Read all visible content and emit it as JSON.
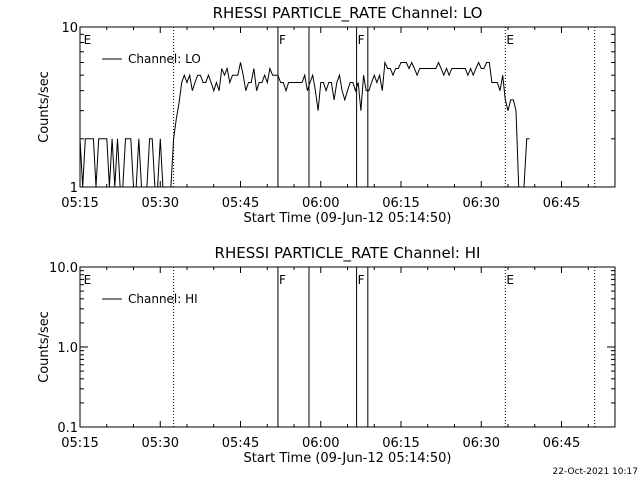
{
  "footer_stamp": "22-Oct-2021 10:17",
  "chart_data": [
    {
      "type": "line",
      "title": "RHESSI PARTICLE_RATE Channel: LO",
      "xlabel": "Start Time (09-Jun-12 05:14:50)",
      "ylabel": "Counts/sec",
      "yscale": "log",
      "ylim": [
        1,
        10
      ],
      "ytick_labels": [
        {
          "v": 10,
          "t": "10"
        },
        {
          "v": 1,
          "t": "1"
        }
      ],
      "xlim": [
        0,
        100
      ],
      "x_unit": "minutes after 05:14:50",
      "xtick_labels": [
        "05:15",
        "05:30",
        "05:45",
        "06:00",
        "06:15",
        "06:30",
        "06:45"
      ],
      "legend": {
        "label": "Channel: LO",
        "position": "top-left"
      },
      "markers": [
        {
          "t": 17.5,
          "label": "",
          "style": "dotted"
        },
        {
          "t": 0.5,
          "label": "E",
          "style": "none"
        },
        {
          "t": 37.0,
          "label": "F",
          "style": "solid"
        },
        {
          "t": 42.8,
          "label": "",
          "style": "solid"
        },
        {
          "t": 51.7,
          "label": "F",
          "style": "solid"
        },
        {
          "t": 53.8,
          "label": "",
          "style": "solid"
        },
        {
          "t": 79.5,
          "label": "E",
          "style": "dotted"
        },
        {
          "t": 96.2,
          "label": "",
          "style": "dotted"
        }
      ],
      "series": [
        {
          "name": "Channel: LO",
          "segments": [
            [
              0,
              17.5,
              "noise",
              1,
              2
            ],
            [
              17.5,
              19,
              "ramp",
              2,
              4
            ],
            [
              19,
              26,
              "noise",
              4,
              5
            ],
            [
              26,
              37,
              "noise",
              4,
              6
            ],
            [
              37,
              44,
              "noise",
              4,
              5
            ],
            [
              44,
              53,
              "noise",
              3,
              5
            ],
            [
              53,
              55,
              "noise",
              4,
              5
            ],
            [
              55,
              57,
              "noise",
              4,
              5
            ],
            [
              57,
              63,
              "noise",
              5,
              6
            ],
            [
              63,
              77,
              "noise",
              5,
              6
            ],
            [
              77,
              79.5,
              "noise",
              4,
              5
            ],
            [
              79.5,
              82,
              "noise",
              3,
              4
            ],
            [
              82,
              84.5,
              "noise",
              1,
              2
            ]
          ]
        }
      ]
    },
    {
      "type": "line",
      "title": "RHESSI PARTICLE_RATE Channel: HI",
      "xlabel": "Start Time (09-Jun-12 05:14:50)",
      "ylabel": "Counts/sec",
      "yscale": "log",
      "ylim": [
        0.1,
        10
      ],
      "ytick_labels": [
        {
          "v": 10,
          "t": "10.0"
        },
        {
          "v": 1,
          "t": "1.0"
        },
        {
          "v": 0.1,
          "t": "0.1"
        }
      ],
      "xlim": [
        0,
        100
      ],
      "x_unit": "minutes after 05:14:50",
      "xtick_labels": [
        "05:15",
        "05:30",
        "05:45",
        "06:00",
        "06:15",
        "06:30",
        "06:45"
      ],
      "legend": {
        "label": "Channel: HI",
        "position": "top-left"
      },
      "markers": [
        {
          "t": 17.5,
          "label": "",
          "style": "dotted"
        },
        {
          "t": 0.5,
          "label": "E",
          "style": "none"
        },
        {
          "t": 37.0,
          "label": "F",
          "style": "solid"
        },
        {
          "t": 42.8,
          "label": "",
          "style": "solid"
        },
        {
          "t": 51.7,
          "label": "F",
          "style": "solid"
        },
        {
          "t": 53.8,
          "label": "",
          "style": "solid"
        },
        {
          "t": 79.5,
          "label": "E",
          "style": "dotted"
        },
        {
          "t": 96.2,
          "label": "",
          "style": "dotted"
        }
      ],
      "series": []
    }
  ]
}
